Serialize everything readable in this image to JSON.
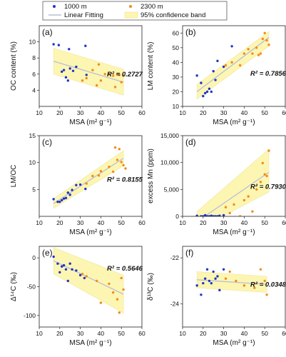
{
  "legend": {
    "items": [
      {
        "label": "1000 m",
        "kind": "dot",
        "color": "#1f35c9"
      },
      {
        "label": "2300 m",
        "kind": "dot",
        "color": "#f28c1b"
      },
      {
        "label": "Linear Fitting",
        "kind": "line",
        "color": "#b9bfd6"
      },
      {
        "label": "95% confidence band",
        "kind": "band",
        "color": "#fdf6b2"
      }
    ]
  },
  "colors": {
    "series_1000": "#1f35c9",
    "series_2300": "#f28c1b",
    "band": "#fdf6b2",
    "fit": "#b9bfd6"
  },
  "chart_data": [
    {
      "type": "scatter",
      "panel": "(a)",
      "ylabel": "OC content (%)",
      "xlabel": "MSA (m² g⁻¹)",
      "xlim": [
        10,
        60
      ],
      "ylim": [
        2,
        12
      ],
      "xticks": [
        "10",
        "20",
        "30",
        "40",
        "50",
        "60"
      ],
      "yticks": [
        "4",
        "6",
        "8",
        "10"
      ],
      "ytick_values": [
        4,
        6,
        8,
        10
      ],
      "r2": "R² = 0.2727",
      "fit": {
        "x": [
          17,
          51
        ],
        "y": [
          7.6,
          5.0
        ]
      },
      "band": {
        "x": [
          17,
          51
        ],
        "upper": [
          9.2,
          6.6
        ],
        "lower": [
          6.0,
          3.4
        ]
      },
      "series": [
        {
          "name": "1000 m",
          "x": [
            17,
            19.5,
            21,
            22,
            23,
            24,
            24.5,
            25,
            26.5,
            28,
            32.5,
            33
          ],
          "y": [
            9.7,
            9.6,
            6.3,
            6.5,
            5.6,
            5.2,
            9.1,
            6.7,
            6.4,
            6.9,
            9.5,
            5.9
          ]
        },
        {
          "name": "2300 m",
          "x": [
            31,
            33,
            36,
            38,
            39,
            40,
            42,
            44,
            46,
            47,
            48,
            49,
            50,
            51
          ],
          "y": [
            5.2,
            5.5,
            6.5,
            4.6,
            7.2,
            5.2,
            6.0,
            6.0,
            5.8,
            4.4,
            6.0,
            5.9,
            5.0,
            5.8
          ]
        }
      ]
    },
    {
      "type": "scatter",
      "panel": "(b)",
      "ylabel": "LM content (%)",
      "xlabel": "MSA (m² g⁻¹)",
      "xlim": [
        10,
        60
      ],
      "ylim": [
        10,
        65
      ],
      "xticks": [
        "10",
        "20",
        "30",
        "40",
        "50",
        "60"
      ],
      "yticks": [
        "10",
        "20",
        "30",
        "40",
        "50",
        "60"
      ],
      "ytick_values": [
        10,
        20,
        30,
        40,
        50,
        60
      ],
      "r2": "R² = 0.7856",
      "fit": {
        "x": [
          17,
          52
        ],
        "y": [
          20,
          57
        ]
      },
      "band": {
        "x": [
          17,
          52
        ],
        "upper": [
          25,
          61
        ],
        "lower": [
          15,
          51
        ]
      },
      "series": [
        {
          "name": "1000 m",
          "x": [
            17,
            19,
            20,
            21,
            22,
            23,
            24,
            25,
            26,
            27,
            30,
            34
          ],
          "y": [
            31,
            26,
            17,
            19,
            20,
            22,
            20,
            34,
            28,
            41,
            37,
            51
          ]
        },
        {
          "name": "2300 m",
          "x": [
            31,
            34,
            38,
            40,
            42,
            44,
            46,
            47,
            48,
            49,
            50,
            51,
            52
          ],
          "y": [
            38,
            40,
            38,
            46,
            49,
            46,
            50,
            45,
            46,
            56,
            60,
            55,
            52
          ]
        }
      ]
    },
    {
      "type": "scatter",
      "panel": "(c)",
      "ylabel": "LM/OC",
      "xlabel": "MSA (m² g⁻¹)",
      "xlim": [
        10,
        60
      ],
      "ylim": [
        0,
        15
      ],
      "xticks": [
        "10",
        "20",
        "30",
        "40",
        "50",
        "60"
      ],
      "yticks": [
        "5",
        "10",
        "15"
      ],
      "ytick_values": [
        5,
        10,
        15
      ],
      "r2": "R² = 0.8155",
      "fit": {
        "x": [
          17,
          51
        ],
        "y": [
          2.4,
          10.8
        ]
      },
      "band": {
        "x": [
          17,
          51
        ],
        "upper": [
          3.3,
          12.2
        ],
        "lower": [
          1.5,
          9.4
        ]
      },
      "series": [
        {
          "name": "1000 m",
          "x": [
            17,
            19,
            20,
            21,
            22,
            23,
            24,
            25,
            26,
            28,
            30,
            32.5
          ],
          "y": [
            3.2,
            2.7,
            2.7,
            3.0,
            3.3,
            3.4,
            4.4,
            4.0,
            4.9,
            5.8,
            5.9,
            5.1
          ]
        },
        {
          "name": "2300 m",
          "x": [
            33,
            36,
            39,
            40,
            44,
            46,
            47,
            48,
            49,
            50,
            51,
            52
          ],
          "y": [
            6.1,
            7.5,
            7.6,
            8.4,
            9.2,
            8.3,
            12.8,
            10.5,
            12.5,
            10.1,
            9.5,
            8.9
          ]
        }
      ]
    },
    {
      "type": "scatter",
      "panel": "(d)",
      "ylabel": "excess Mn (ppm)",
      "xlabel": "MSA (m² g⁻¹)",
      "xlim": [
        10,
        60
      ],
      "ylim": [
        0,
        15000
      ],
      "xticks": [
        "10",
        "20",
        "30",
        "40",
        "50",
        "60"
      ],
      "yticks": [
        "0",
        "5,000",
        "10,000",
        "15,000"
      ],
      "ytick_values": [
        0,
        5000,
        10000,
        15000
      ],
      "r2": "R² = 0.7930",
      "fit": {
        "x": [
          17,
          52
        ],
        "y": [
          -1000,
          8200
        ]
      },
      "band": {
        "x": [
          17,
          52
        ],
        "upper": [
          900,
          12500
        ],
        "lower": [
          -2500,
          4500
        ]
      },
      "series": [
        {
          "name": "1000 m",
          "x": [
            17,
            19,
            20,
            21,
            22,
            23,
            24,
            25,
            26,
            27,
            28,
            30
          ],
          "y": [
            100,
            0,
            0,
            200,
            0,
            0,
            100,
            0,
            0,
            0,
            100,
            200
          ]
        },
        {
          "name": "2300 m",
          "x": [
            31,
            33,
            35,
            38,
            40,
            42,
            44,
            46,
            48,
            49,
            50,
            51,
            52
          ],
          "y": [
            1700,
            600,
            2200,
            0,
            3000,
            3700,
            900,
            5000,
            6400,
            9900,
            7800,
            7500,
            12200
          ]
        }
      ]
    },
    {
      "type": "scatter",
      "panel": "(e)",
      "ylabel": "Δ¹⁴C (‰)",
      "xlabel": "MSA (m² g⁻¹)",
      "xlim": [
        10,
        60
      ],
      "ylim": [
        -120,
        20
      ],
      "xticks": [
        "10",
        "20",
        "30",
        "40",
        "50",
        "60"
      ],
      "yticks": [
        "-100",
        "-50",
        "0"
      ],
      "ytick_values": [
        -100,
        -50,
        0
      ],
      "r2": "R² = 0.5646",
      "fit": {
        "x": [
          17,
          51
        ],
        "y": [
          -5,
          -63
        ]
      },
      "band": {
        "x": [
          17,
          51
        ],
        "upper": [
          18,
          -30
        ],
        "lower": [
          -28,
          -96
        ]
      },
      "series": [
        {
          "name": "1000 m",
          "x": [
            17,
            19,
            20,
            21,
            22,
            23,
            24,
            25,
            26,
            28,
            30,
            32
          ],
          "y": [
            2,
            -10,
            -25,
            -15,
            -13,
            -20,
            -40,
            -10,
            -20,
            -22,
            -30,
            -35
          ]
        },
        {
          "name": "2300 m",
          "x": [
            31,
            33,
            38,
            40,
            44,
            46,
            48,
            49,
            50,
            51
          ],
          "y": [
            -28,
            -32,
            -40,
            -78,
            -45,
            -60,
            -72,
            -95,
            -35,
            -55
          ]
        }
      ]
    },
    {
      "type": "scatter",
      "panel": "(f)",
      "ylabel": "δ¹³C (‰)",
      "xlabel": "MSA (m² g⁻¹)",
      "xlim": [
        10,
        60
      ],
      "ylim": [
        -25,
        -21.5
      ],
      "xticks": [
        "10",
        "20",
        "30",
        "40",
        "50",
        "60"
      ],
      "yticks": [
        "-24",
        "-22"
      ],
      "ytick_values": [
        -24,
        -22
      ],
      "r2": "R² = 0.0348",
      "fit": {
        "x": [
          17,
          51
        ],
        "y": [
          -22.95,
          -23.15
        ]
      },
      "band": {
        "x": [
          17,
          51
        ],
        "upper": [
          -22.6,
          -22.8
        ],
        "lower": [
          -23.3,
          -23.5
        ]
      },
      "series": [
        {
          "name": "1000 m",
          "x": [
            17,
            19,
            20,
            21,
            22,
            23,
            24,
            25,
            26,
            27,
            28,
            30
          ],
          "y": [
            -23.2,
            -23.6,
            -23.1,
            -22.9,
            -22.5,
            -23.0,
            -23.1,
            -22.6,
            -22.9,
            -22.8,
            -23.4,
            -22.5
          ]
        },
        {
          "name": "2300 m",
          "x": [
            31,
            33,
            36,
            40,
            45,
            48,
            50,
            51
          ],
          "y": [
            -22.9,
            -22.6,
            -23.0,
            -23.2,
            -23.3,
            -22.5,
            -23.0,
            -23.6
          ]
        }
      ]
    }
  ]
}
